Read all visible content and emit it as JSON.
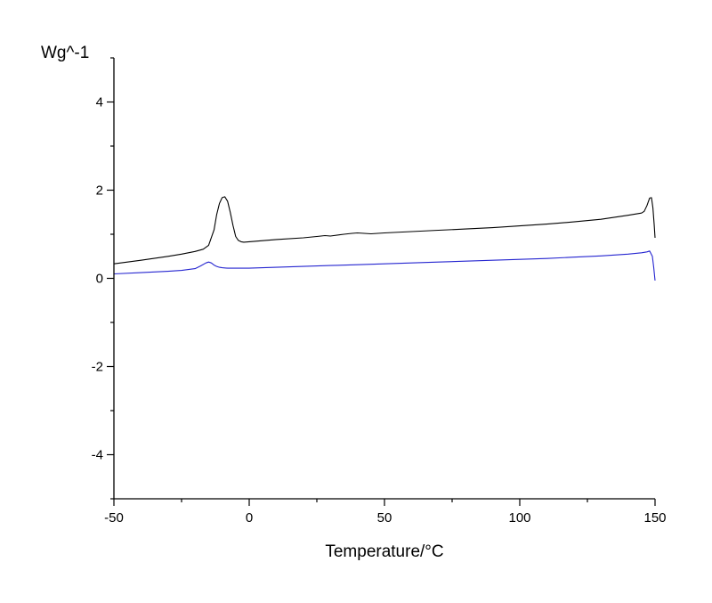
{
  "chart_data": {
    "type": "line",
    "title": "",
    "xlabel": "Temperature/°C",
    "ylabel": "Wg^-1",
    "xlim": [
      -50,
      150
    ],
    "ylim": [
      -5,
      5
    ],
    "x_ticks": [
      -50,
      0,
      50,
      100,
      150
    ],
    "x_tick_labels": [
      "-50",
      "0",
      "50",
      "100",
      "150"
    ],
    "y_ticks": [
      -4,
      -2,
      0,
      2,
      4
    ],
    "y_tick_labels": [
      "-4",
      "-2",
      "0",
      "2",
      "4"
    ],
    "grid": false,
    "legend": "none",
    "series": [
      {
        "color": "#000000",
        "x": [
          -50,
          -40,
          -30,
          -25,
          -20,
          -17,
          -15,
          -13,
          -12,
          -11,
          -10,
          -9,
          -8,
          -7,
          -6,
          -5,
          -4,
          -3,
          -2,
          0,
          10,
          20,
          25,
          28,
          30,
          35,
          38,
          40,
          45,
          50,
          60,
          70,
          80,
          90,
          100,
          110,
          120,
          130,
          140,
          145,
          146,
          147,
          148,
          148.7,
          149.2,
          149.7,
          150
        ],
        "y": [
          0.33,
          0.41,
          0.5,
          0.55,
          0.61,
          0.66,
          0.75,
          1.1,
          1.45,
          1.7,
          1.83,
          1.85,
          1.75,
          1.5,
          1.2,
          0.95,
          0.86,
          0.83,
          0.82,
          0.83,
          0.88,
          0.92,
          0.95,
          0.97,
          0.96,
          1.0,
          1.02,
          1.03,
          1.01,
          1.03,
          1.06,
          1.09,
          1.12,
          1.15,
          1.19,
          1.23,
          1.28,
          1.34,
          1.43,
          1.48,
          1.52,
          1.65,
          1.82,
          1.83,
          1.6,
          1.2,
          0.92
        ]
      },
      {
        "color": "#2525d0",
        "x": [
          -50,
          -40,
          -30,
          -25,
          -20,
          -18,
          -16,
          -15,
          -14,
          -13,
          -12,
          -11,
          -10,
          -8,
          -5,
          0,
          10,
          20,
          30,
          40,
          50,
          60,
          70,
          80,
          90,
          100,
          110,
          120,
          130,
          140,
          145,
          147,
          148,
          149,
          149.5,
          150
        ],
        "y": [
          0.1,
          0.13,
          0.16,
          0.18,
          0.22,
          0.28,
          0.35,
          0.37,
          0.35,
          0.3,
          0.27,
          0.25,
          0.24,
          0.23,
          0.23,
          0.23,
          0.25,
          0.27,
          0.29,
          0.31,
          0.33,
          0.35,
          0.37,
          0.39,
          0.41,
          0.43,
          0.45,
          0.48,
          0.51,
          0.55,
          0.58,
          0.6,
          0.62,
          0.5,
          0.25,
          -0.05
        ]
      }
    ]
  }
}
